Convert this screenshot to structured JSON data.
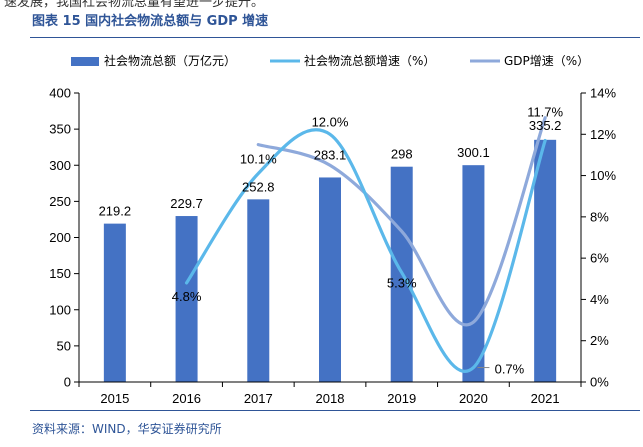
{
  "header": {
    "top_text": "速发展，我国社会物流总量有望进一步提升。",
    "figure_title": "图表 15 国内社会物流总额与 GDP 增速",
    "source": "资料来源：WIND，华安证券研究所"
  },
  "chart_data": {
    "type": "bar",
    "categories": [
      "2015",
      "2016",
      "2017",
      "2018",
      "2019",
      "2020",
      "2021"
    ],
    "series": [
      {
        "name": "社会物流总额（万亿元）",
        "type": "bar",
        "axis": "left",
        "values": [
          219.2,
          229.7,
          252.8,
          283.1,
          298,
          300.1,
          335.2
        ],
        "labels": [
          "219.2",
          "229.7",
          "252.8",
          "283.1",
          "298",
          "300.1",
          "335.2"
        ],
        "color": "#4472c4"
      },
      {
        "name": "社会物流总额增速（%）",
        "type": "line",
        "axis": "right",
        "values": [
          null,
          4.8,
          10.1,
          12.0,
          5.3,
          0.7,
          11.7
        ],
        "labels": [
          "",
          "4.8%",
          "10.1%",
          "12.0%",
          "5.3%",
          "0.7%",
          "11.7%"
        ],
        "color": "#5bb8ea"
      },
      {
        "name": "GDP增速（%）",
        "type": "line",
        "axis": "right",
        "values": [
          null,
          null,
          11.5,
          10.5,
          7.3,
          2.9,
          12.8
        ],
        "color": "#8ea9db"
      }
    ],
    "y_left": {
      "min": 0,
      "max": 400,
      "step": 50,
      "ticks": [
        "0",
        "50",
        "100",
        "150",
        "200",
        "250",
        "300",
        "350",
        "400"
      ]
    },
    "y_right": {
      "min": 0,
      "max": 14,
      "step": 2,
      "ticks": [
        "0%",
        "2%",
        "4%",
        "6%",
        "8%",
        "10%",
        "12%",
        "14%"
      ]
    },
    "legend_position": "top",
    "grid": false
  }
}
